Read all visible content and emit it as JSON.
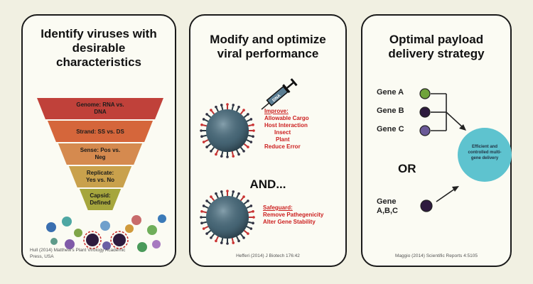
{
  "panels": {
    "p1": {
      "title": [
        "Identify viruses with",
        "desirable",
        "characteristics"
      ],
      "funnel": [
        {
          "line1": "Genome: RNA vs.",
          "line2": "DNA",
          "color": "#c0413a"
        },
        {
          "line1": "Strand: SS vs. DS",
          "line2": "",
          "color": "#d5663b"
        },
        {
          "line1": "Sense: Pos vs.",
          "line2": "Neg",
          "color": "#d58a4f"
        },
        {
          "line1": "Replicate:",
          "line2": "Yes vs. No",
          "color": "#c9a14c"
        },
        {
          "line1": "Capsid:",
          "line2": "Defined",
          "color": "#a6a63d"
        }
      ],
      "citation": [
        "Hull (2014) Matthew's Plant Virology Academic",
        "Press, USA"
      ]
    },
    "p2": {
      "title": [
        "Modify and optimize",
        "viral performance"
      ],
      "syringe_label": "DNA",
      "improve_heading": "Improve:",
      "improve_items": [
        "Allowable Cargo",
        "Host Interaction",
        "Insect",
        "Plant",
        "Reduce Error"
      ],
      "and_label": "AND...",
      "safeguard_heading": "Safeguard:",
      "safeguard_items": [
        "Remove Pathegenicity",
        "Alter Gene Stability"
      ],
      "citation": "Hefferi (2014) J Biotech 176:42"
    },
    "p3": {
      "title": [
        "Optimal payload",
        "delivery strategy"
      ],
      "genes": [
        {
          "label": "Gene A",
          "color": "#6fa33a"
        },
        {
          "label": "Gene B",
          "color": "#2e1b3e"
        },
        {
          "label": "Gene C",
          "color": "#6b5a98"
        }
      ],
      "or_label": "OR",
      "combined_gene": {
        "line1": "Gene",
        "line2": "A,B,C",
        "color": "#2e1b3e"
      },
      "result": {
        "lines": [
          "Efficient and",
          "controlled multi-",
          "gene delivery"
        ],
        "color": "#5ec3cf"
      },
      "citation": "Maggio (2014) Scientific Reports 4:5105"
    }
  },
  "colors": {
    "background": "#f1f0e2",
    "text_red": "#cc1f1f",
    "virus_body": "#4a6a7a"
  }
}
